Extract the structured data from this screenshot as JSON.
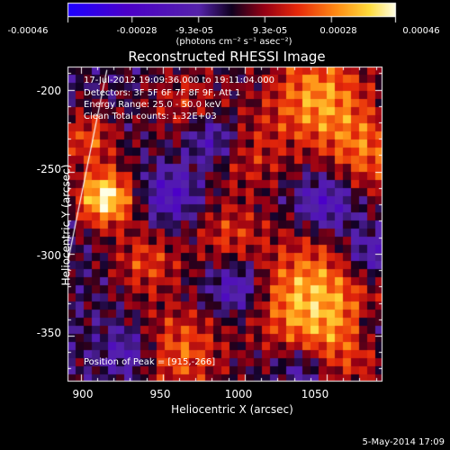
{
  "chart_data": {
    "type": "heatmap",
    "title": "Reconstructed RHESSI Image",
    "xlabel": "Heliocentric X (arcsec)",
    "ylabel": "Heliocentric Y (arcsec)",
    "xlim": [
      892,
      1084
    ],
    "ylim": [
      -378,
      -186
    ],
    "x_ticks": [
      "900",
      "950",
      "1000",
      "1050"
    ],
    "y_ticks": [
      "-200",
      "-250",
      "-300",
      "-350"
    ],
    "colorbar": {
      "ticks": [
        "-0.00046",
        "-0.00028",
        "-9.3e-05",
        "9.3e-05",
        "0.00028",
        "0.00046"
      ],
      "range": [
        -0.00046,
        0.00046
      ],
      "units": "(photons cm⁻² s⁻¹ asec⁻²)"
    },
    "annotations": {
      "time": "17-Jul-2012 19:09:36.000 to 19:11:04.000",
      "detectors": "Detectors: 3F 5F 6F 7F 8F 9F, Att 1",
      "energy": "Energy Range: 25.0 - 50.0 keV",
      "clean": "Clean    Total counts: 1.32E+03",
      "peak": "Position of Peak = [915,-266]"
    },
    "peak": [
      915,
      -266
    ],
    "limb_line": [
      [
        892,
        -306
      ],
      [
        916,
        -188
      ]
    ]
  },
  "timestamp": "5-May-2014 17:09"
}
